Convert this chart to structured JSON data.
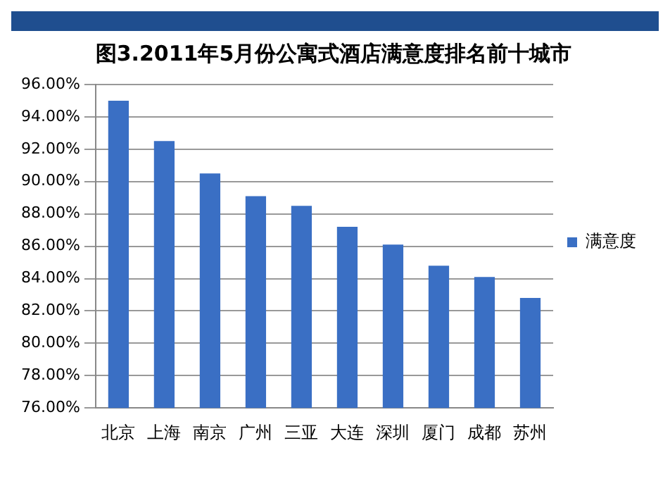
{
  "chart_data": {
    "type": "bar",
    "title": "图3.2011年5月份公寓式酒店满意度排名前十城市",
    "categories": [
      "北京",
      "上海",
      "南京",
      "广州",
      "三亚",
      "大连",
      "深圳",
      "厦门",
      "成都",
      "苏州"
    ],
    "series": [
      {
        "name": "满意度",
        "color": "#3a6fc4",
        "values": [
          95.0,
          92.5,
          90.5,
          89.1,
          88.5,
          87.2,
          86.1,
          84.8,
          84.1,
          82.8
        ]
      }
    ],
    "ylim": [
      76,
      96
    ],
    "yticks": [
      {
        "value": 76,
        "label": "76.00%"
      },
      {
        "value": 78,
        "label": "78.00%"
      },
      {
        "value": 80,
        "label": "80.00%"
      },
      {
        "value": 82,
        "label": "82.00%"
      },
      {
        "value": 84,
        "label": "84.00%"
      },
      {
        "value": 86,
        "label": "86.00%"
      },
      {
        "value": 88,
        "label": "88.00%"
      },
      {
        "value": 90,
        "label": "90.00%"
      },
      {
        "value": 92,
        "label": "92.00%"
      },
      {
        "value": 94,
        "label": "94.00%"
      },
      {
        "value": 96,
        "label": "96.00%"
      }
    ],
    "grid": "y",
    "legend": "right"
  }
}
